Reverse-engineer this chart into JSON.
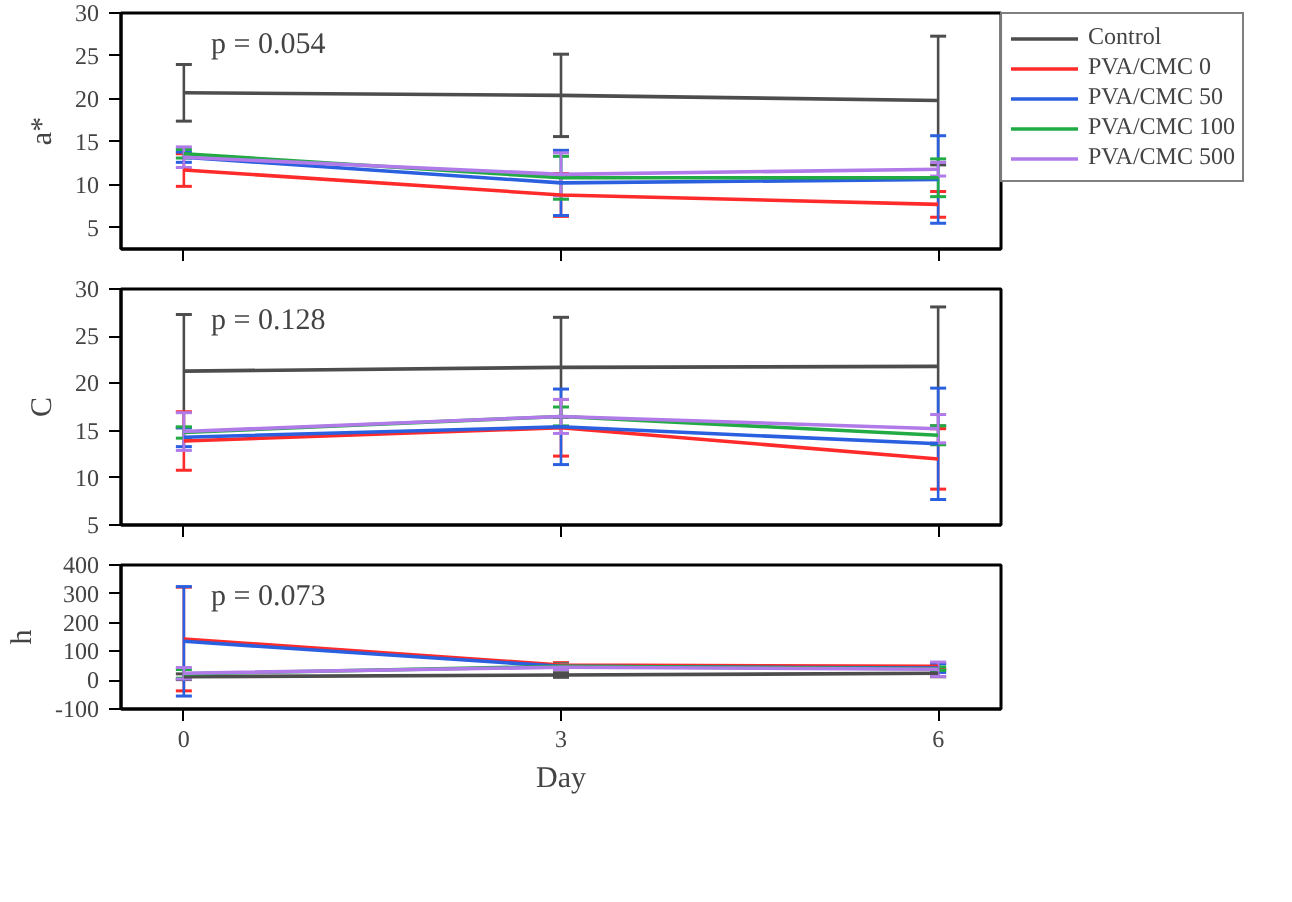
{
  "chart_data": [
    {
      "type": "line",
      "ylabel": "a*",
      "x": [
        0,
        3,
        6
      ],
      "xlim": [
        -0.5,
        6.5
      ],
      "xticks": [
        0,
        3,
        6
      ],
      "ylim": [
        2.5,
        30
      ],
      "yticks": [
        5,
        10,
        15,
        20,
        25,
        30
      ],
      "tick_labels": "y",
      "legend": "right",
      "grid": false,
      "marker": "none",
      "annotations": [
        "p = 0.054"
      ],
      "series": [
        {
          "name": "Control",
          "color": "#4d4d4d",
          "values": [
            20.7,
            20.4,
            19.8
          ],
          "errors": [
            3.3,
            4.8,
            7.5
          ]
        },
        {
          "name": "PVA/CMC 0",
          "color": "#ff2a2a",
          "values": [
            11.7,
            8.8,
            7.7
          ],
          "errors": [
            1.9,
            2.5,
            1.5
          ]
        },
        {
          "name": "PVA/CMC 50",
          "color": "#2a5fe0",
          "values": [
            13.2,
            10.2,
            10.6
          ],
          "errors": [
            0.6,
            3.8,
            5.1
          ]
        },
        {
          "name": "PVA/CMC 100",
          "color": "#22aa44",
          "values": [
            13.6,
            10.8,
            10.8
          ],
          "errors": [
            0.5,
            2.5,
            2.2
          ]
        },
        {
          "name": "PVA/CMC 500",
          "color": "#b07ae8",
          "values": [
            13.2,
            11.2,
            11.8
          ],
          "errors": [
            1.2,
            2.5,
            0.8
          ]
        }
      ]
    },
    {
      "type": "line",
      "ylabel": "C",
      "x": [
        0,
        3,
        6
      ],
      "xlim": [
        -0.5,
        6.5
      ],
      "xticks": [
        0,
        3,
        6
      ],
      "ylim": [
        5,
        30
      ],
      "yticks": [
        5,
        10,
        15,
        20,
        25,
        30
      ],
      "tick_labels": "y",
      "grid": false,
      "marker": "none",
      "annotations": [
        "p = 0.128"
      ],
      "series": [
        {
          "color": "#4d4d4d",
          "values": [
            21.3,
            21.7,
            21.8
          ],
          "errors": [
            6.0,
            5.3,
            6.3
          ]
        },
        {
          "color": "#ff2a2a",
          "values": [
            13.9,
            15.3,
            12.0
          ],
          "errors": [
            3.1,
            3.0,
            3.2
          ]
        },
        {
          "color": "#2a5fe0",
          "values": [
            14.3,
            15.4,
            13.6
          ],
          "errors": [
            1.0,
            4.0,
            5.9
          ]
        },
        {
          "color": "#22aa44",
          "values": [
            14.8,
            16.5,
            14.5
          ],
          "errors": [
            0.6,
            1.0,
            1.0
          ]
        },
        {
          "color": "#b07ae8",
          "values": [
            14.9,
            16.5,
            15.2
          ],
          "errors": [
            2.0,
            1.8,
            1.5
          ]
        }
      ]
    },
    {
      "type": "line",
      "ylabel": "h",
      "xlabel": "Day",
      "x": [
        0,
        3,
        6
      ],
      "xlim": [
        -0.5,
        6.5
      ],
      "xticks": [
        0,
        3,
        6
      ],
      "ylim": [
        -100,
        400
      ],
      "yticks": [
        -100,
        0,
        100,
        200,
        300,
        400
      ],
      "grid": false,
      "marker": "none",
      "annotations": [
        "p = 0.073"
      ],
      "series": [
        {
          "color": "#4d4d4d",
          "values": [
            12,
            18,
            24
          ],
          "errors": [
            10,
            8,
            12
          ]
        },
        {
          "color": "#ff2a2a",
          "values": [
            143,
            53,
            48
          ],
          "errors": [
            180,
            8,
            10
          ]
        },
        {
          "color": "#2a5fe0",
          "values": [
            135,
            48,
            42
          ],
          "errors": [
            190,
            8,
            15
          ]
        },
        {
          "color": "#22aa44",
          "values": [
            22,
            48,
            40
          ],
          "errors": [
            15,
            8,
            6
          ]
        },
        {
          "color": "#b07ae8",
          "values": [
            24,
            45,
            38
          ],
          "errors": [
            20,
            8,
            25
          ]
        }
      ]
    }
  ]
}
